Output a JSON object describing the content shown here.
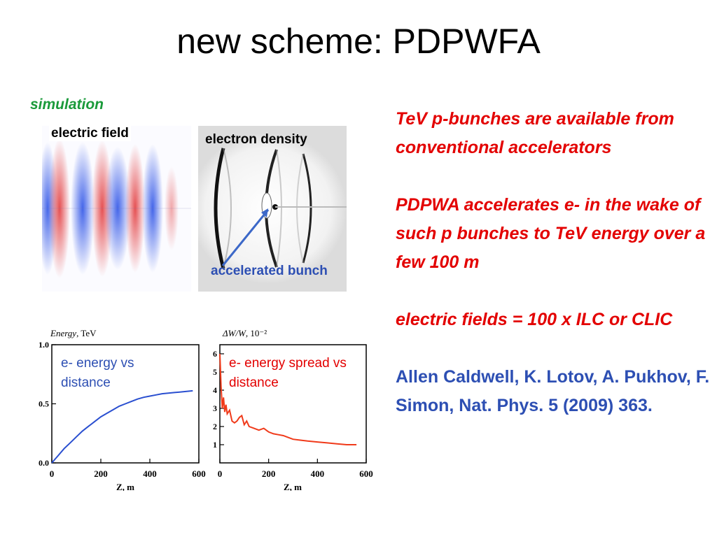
{
  "slide": {
    "title": "new scheme: PDPWFA",
    "simulation_label": "simulation"
  },
  "panels": {
    "electric_field_label": "electric field",
    "electron_density_label": "electron density",
    "accelerated_bunch_label": "accelerated bunch"
  },
  "colors": {
    "red_text": "#e30000",
    "blue_text": "#2d4fb3",
    "green_text": "#1a9a3a",
    "energy_curve": "#2a4fd0",
    "spread_curve": "#f03a1a"
  },
  "right_text": {
    "para1": "TeV p-bunches are available from conventional accelerators",
    "para2": "PDPWA accelerates e-  in the wake of such p bunches to TeV energy over a few 100 m",
    "para3": "electric fields = 100 x ILC or CLIC",
    "reference": "Allen Caldwell, K. Lotov, A. Pukhov, F. Simon, Nat. Phys. 5 (2009) 363."
  },
  "chart_data": [
    {
      "type": "line",
      "ylabel_main": "Energy",
      "ylabel_unit": ", TeV",
      "xlabel": "Z, m",
      "annotation": "e- energy vs distance",
      "xlim": [
        0,
        600
      ],
      "ylim": [
        0,
        1.0
      ],
      "xticks": [
        0,
        200,
        400,
        600
      ],
      "yticks": [
        0.0,
        0.5,
        1.0
      ],
      "ytick_labels": [
        "0.0",
        "0.5",
        "1.0"
      ],
      "x": [
        0,
        25,
        50,
        75,
        100,
        125,
        150,
        175,
        200,
        225,
        250,
        275,
        300,
        325,
        350,
        375,
        400,
        425,
        450,
        475,
        500,
        525,
        550,
        575
      ],
      "y": [
        0.0,
        0.06,
        0.12,
        0.17,
        0.22,
        0.27,
        0.31,
        0.35,
        0.39,
        0.42,
        0.45,
        0.48,
        0.5,
        0.52,
        0.54,
        0.555,
        0.565,
        0.575,
        0.585,
        0.59,
        0.595,
        0.6,
        0.605,
        0.61
      ]
    },
    {
      "type": "line",
      "ylabel_main": "ΔW/W",
      "ylabel_unit": ", 10⁻²",
      "xlabel": "Z, m",
      "annotation": "e- energy spread vs distance",
      "xlim": [
        0,
        600
      ],
      "ylim": [
        0,
        6.5
      ],
      "xticks": [
        0,
        200,
        400,
        600
      ],
      "yticks": [
        1,
        2,
        3,
        4,
        5,
        6
      ],
      "ytick_labels": [
        "1",
        "2",
        "3",
        "4",
        "5",
        "6"
      ],
      "x": [
        0,
        5,
        10,
        15,
        20,
        25,
        30,
        40,
        50,
        60,
        70,
        80,
        90,
        100,
        110,
        120,
        140,
        160,
        180,
        200,
        220,
        240,
        260,
        280,
        300,
        330,
        360,
        400,
        440,
        480,
        520,
        560
      ],
      "y": [
        6.0,
        4.2,
        3.0,
        3.6,
        2.8,
        3.2,
        2.7,
        2.9,
        2.3,
        2.2,
        2.3,
        2.5,
        2.6,
        2.1,
        2.3,
        2.0,
        1.9,
        1.8,
        1.9,
        1.7,
        1.6,
        1.55,
        1.5,
        1.4,
        1.3,
        1.25,
        1.2,
        1.15,
        1.1,
        1.05,
        1.0,
        1.0
      ]
    }
  ]
}
